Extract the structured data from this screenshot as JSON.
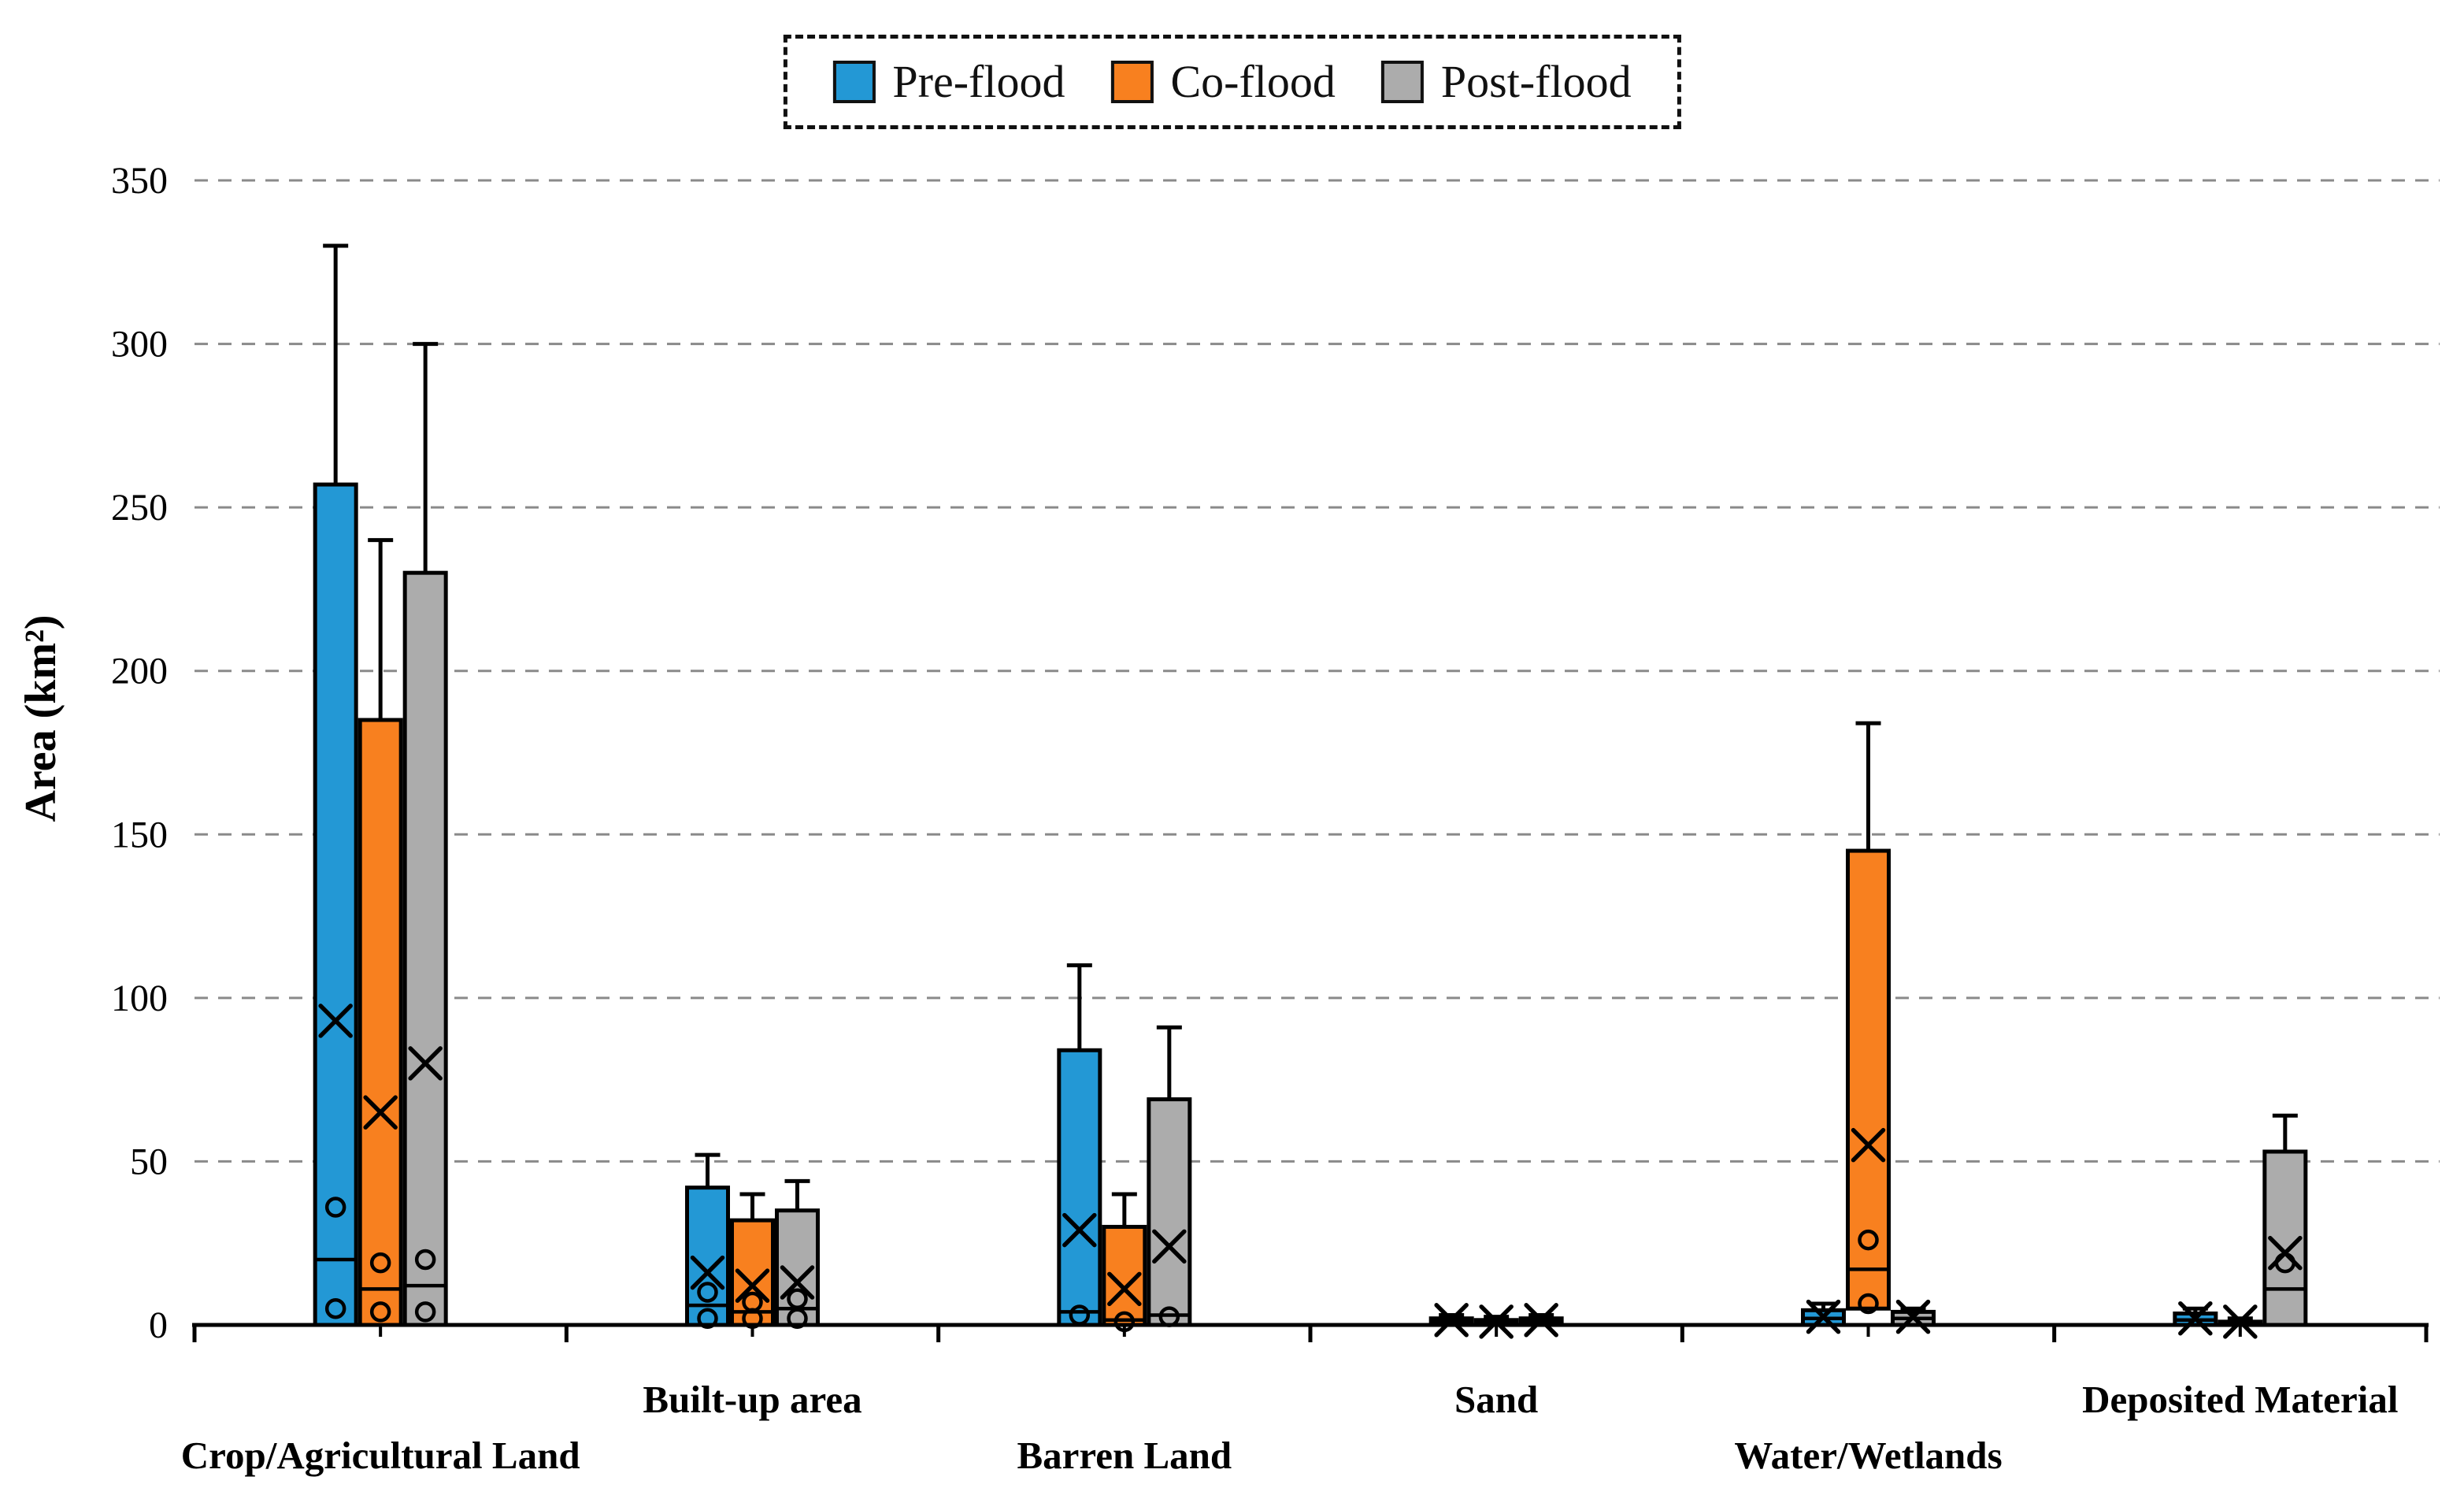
{
  "figure": {
    "y_axis_title": "Area (km²)",
    "legend": {
      "items": [
        {
          "label": "Pre-flood",
          "color": "#2398D5"
        },
        {
          "label": "Co-flood",
          "color": "#F8801F"
        },
        {
          "label": "Post-flood",
          "color": "#ACACAC"
        }
      ]
    }
  },
  "chart_data": {
    "type": "boxplot",
    "title": "",
    "xlabel": "",
    "ylabel": "Area (km²)",
    "ylim": [
      0,
      350
    ],
    "y_ticks": [
      0,
      50,
      100,
      150,
      200,
      250,
      300,
      350
    ],
    "grid": "horizontal-dashed",
    "grid_color": "#8a8a8a",
    "legend_position": "top-center",
    "legend_border": "dashed",
    "x_label_stagger": true,
    "mean_marker": "x",
    "outlier_marker": "circle",
    "box_border_color": "#000000",
    "categories": [
      "Crop/Agricultural Land",
      "Built-up area",
      "Barren Land",
      "Sand",
      "Water/Wetlands",
      "Deposited Material"
    ],
    "series": [
      {
        "name": "Pre-flood",
        "color": "#2398D5",
        "boxes": [
          {
            "q1": 0,
            "median": 20,
            "q3": 257,
            "whisker_low": 0,
            "whisker_high": 330,
            "mean": 93,
            "outliers": [
              36,
              5
            ]
          },
          {
            "q1": 0,
            "median": 6,
            "q3": 42,
            "whisker_low": 0,
            "whisker_high": 52,
            "mean": 16,
            "outliers": [
              10,
              2
            ]
          },
          {
            "q1": 0,
            "median": 4,
            "q3": 84,
            "whisker_low": 0,
            "whisker_high": 110,
            "mean": 29,
            "outliers": [
              3
            ]
          },
          {
            "q1": 0,
            "median": 1,
            "q3": 2,
            "whisker_low": 0,
            "whisker_high": 3,
            "mean": 1.5,
            "outliers": []
          },
          {
            "q1": 0,
            "median": 2,
            "q3": 4.5,
            "whisker_low": 0,
            "whisker_high": 6.5,
            "mean": 2.5,
            "outliers": []
          },
          {
            "q1": 0,
            "median": 1.5,
            "q3": 3.5,
            "whisker_low": 0,
            "whisker_high": 5,
            "mean": 2,
            "outliers": []
          }
        ]
      },
      {
        "name": "Co-flood",
        "color": "#F8801F",
        "boxes": [
          {
            "q1": 0,
            "median": 11,
            "q3": 185,
            "whisker_low": 0,
            "whisker_high": 240,
            "mean": 65,
            "outliers": [
              19,
              4
            ]
          },
          {
            "q1": 0,
            "median": 4,
            "q3": 32,
            "whisker_low": 0,
            "whisker_high": 40,
            "mean": 12,
            "outliers": [
              7,
              2
            ]
          },
          {
            "q1": 0,
            "median": 1.5,
            "q3": 30,
            "whisker_low": 0,
            "whisker_high": 40,
            "mean": 11,
            "outliers": [
              1
            ]
          },
          {
            "q1": 0,
            "median": 0.5,
            "q3": 1.5,
            "whisker_low": 0,
            "whisker_high": 2.5,
            "mean": 1,
            "outliers": []
          },
          {
            "q1": 5,
            "median": 17,
            "q3": 145,
            "whisker_low": 5,
            "whisker_high": 184,
            "mean": 55,
            "outliers": [
              26,
              6.5
            ]
          },
          {
            "q1": 0,
            "median": 0.5,
            "q3": 1,
            "whisker_low": 0,
            "whisker_high": 2,
            "mean": 1,
            "outliers": []
          }
        ]
      },
      {
        "name": "Post-flood",
        "color": "#ACACAC",
        "boxes": [
          {
            "q1": 0,
            "median": 12,
            "q3": 230,
            "whisker_low": 0,
            "whisker_high": 300,
            "mean": 80,
            "outliers": [
              20,
              4
            ]
          },
          {
            "q1": 0,
            "median": 5,
            "q3": 35,
            "whisker_low": 0,
            "whisker_high": 44,
            "mean": 13,
            "outliers": [
              8,
              2
            ]
          },
          {
            "q1": 0,
            "median": 3,
            "q3": 69,
            "whisker_low": 0,
            "whisker_high": 91,
            "mean": 24,
            "outliers": [
              2.5
            ]
          },
          {
            "q1": 0,
            "median": 1,
            "q3": 2,
            "whisker_low": 0,
            "whisker_high": 3,
            "mean": 1.5,
            "outliers": []
          },
          {
            "q1": 0,
            "median": 2,
            "q3": 4,
            "whisker_low": 0,
            "whisker_high": 5,
            "mean": 2.5,
            "outliers": []
          },
          {
            "q1": 0,
            "median": 11,
            "q3": 53,
            "whisker_low": 0,
            "whisker_high": 64,
            "mean": 22,
            "outliers": [
              19
            ]
          }
        ]
      }
    ]
  }
}
